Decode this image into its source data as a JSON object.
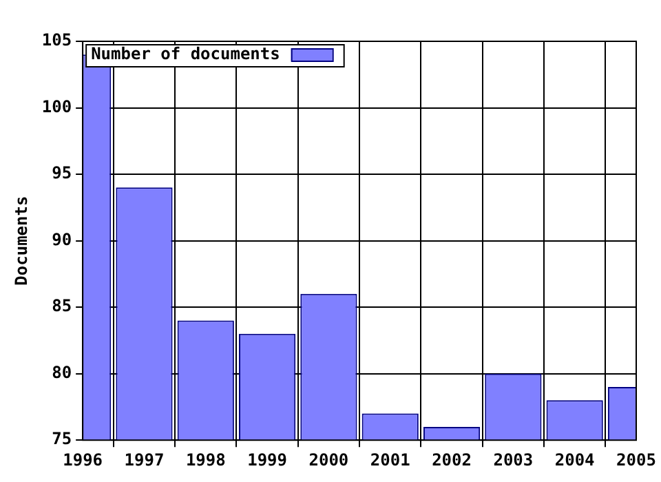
{
  "chart_data": {
    "type": "bar",
    "ylabel": "Documents",
    "x": [
      1996,
      1997,
      1998,
      1999,
      2000,
      2001,
      2002,
      2003,
      2004,
      2005
    ],
    "series": [
      {
        "name": "Number of documents",
        "color": "#8080ff",
        "values": [
          104,
          94,
          84,
          83,
          86,
          77,
          76,
          80,
          78,
          79
        ]
      }
    ],
    "xlim": [
      1996,
      2005
    ],
    "xticks": [
      1996,
      1997,
      1998,
      1999,
      2000,
      2001,
      2002,
      2003,
      2004,
      2005
    ],
    "ylim": [
      75,
      105
    ],
    "yticks": [
      75,
      80,
      85,
      90,
      95,
      100,
      105
    ],
    "grid": true,
    "legend": "top left"
  }
}
